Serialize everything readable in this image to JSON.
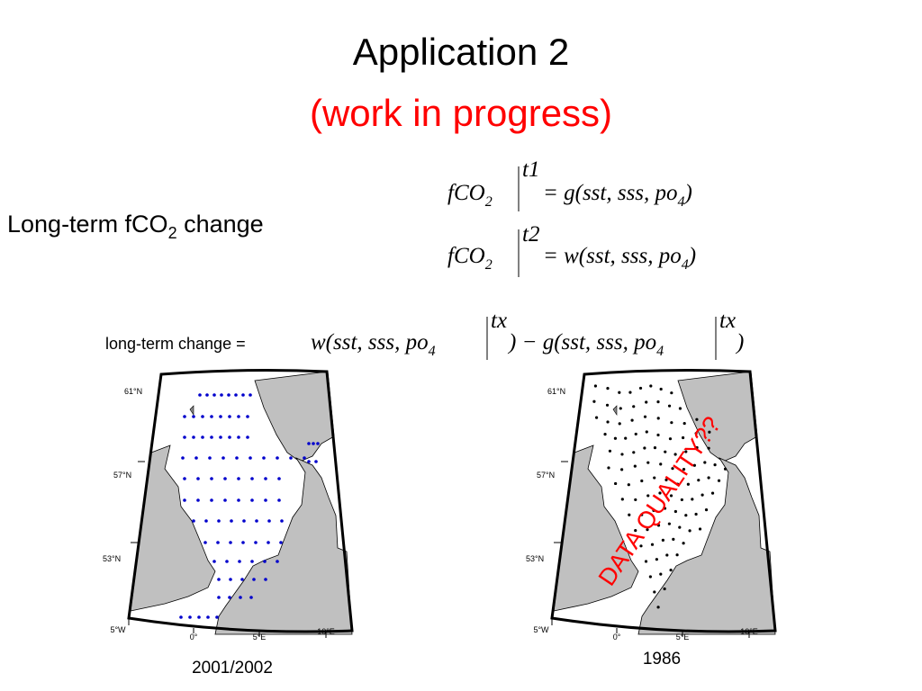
{
  "header": {
    "title": "Application 2",
    "subtitle": "(work in progress)"
  },
  "left_label": {
    "text": "Long-term fCO",
    "sub": "2",
    "tail": " change"
  },
  "equations": [
    {
      "lhs": "fCO",
      "lhs_sub": "2",
      "sup": "t1",
      "rhs": "= g(sst, sss, po",
      "rhs_sub": "4",
      "close": ")"
    },
    {
      "lhs": "fCO",
      "lhs_sub": "2",
      "sup": "t2",
      "rhs": "= w(sst, sss, po",
      "rhs_sub": "4",
      "close": ")"
    }
  ],
  "change": {
    "label": "long-term change =",
    "a": "w(sst, sss, po",
    "a_sub": "4",
    "a_sup": "tx",
    "mid": ") − g(sst, sss, po",
    "b_sub": "4",
    "b_sup": "tx",
    "close": ")"
  },
  "map_labels": [
    "61°N",
    "57°N",
    "53°N",
    "5°W",
    "0°",
    "5°E",
    "10°E"
  ],
  "maps": [
    {
      "caption": "2001/2002"
    },
    {
      "caption": "1986"
    }
  ],
  "annotation": "DATA QUALITY??"
}
